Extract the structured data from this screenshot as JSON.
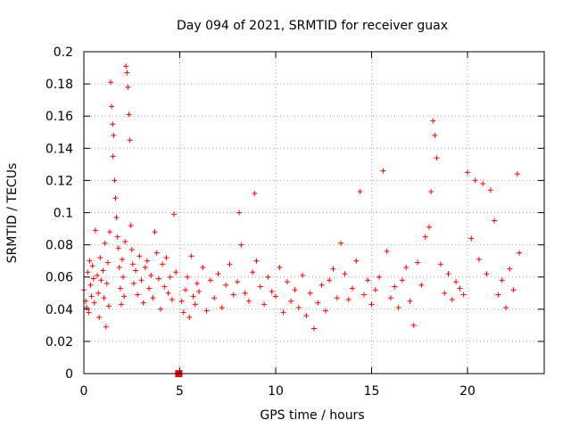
{
  "chart_data": {
    "type": "scatter",
    "title": "Day 094 of 2021, SRMTID for receiver guax",
    "xlabel": "GPS time / hours",
    "ylabel": "SRMTID / TECUs",
    "xlim": [
      0,
      24
    ],
    "ylim": [
      0,
      0.2
    ],
    "xticks": [
      0,
      5,
      10,
      15,
      20
    ],
    "xtick_labels": [
      "0",
      "5",
      "10",
      "15",
      "20"
    ],
    "yticks": [
      0,
      0.02,
      0.04,
      0.06,
      0.08,
      0.1,
      0.12,
      0.14,
      0.16,
      0.18,
      0.2
    ],
    "ytick_labels": [
      "0",
      "0.02",
      "0.04",
      "0.06",
      "0.08",
      "0.1",
      "0.12",
      "0.14",
      "0.16",
      "0.18",
      "0.2"
    ],
    "grid": true,
    "marker": "+",
    "color": "#ff0000",
    "series": [
      {
        "name": "SRMTID",
        "x": [
          0.0,
          0.1,
          0.15,
          0.2,
          0.25,
          0.3,
          0.35,
          0.4,
          0.45,
          0.5,
          0.55,
          0.6,
          0.7,
          0.75,
          0.8,
          0.85,
          0.9,
          1.0,
          1.05,
          1.1,
          1.15,
          1.2,
          1.25,
          1.3,
          1.35,
          1.4,
          1.45,
          1.5,
          1.52,
          1.55,
          1.6,
          1.65,
          1.7,
          1.75,
          1.8,
          1.85,
          1.9,
          1.95,
          2.0,
          2.05,
          2.1,
          2.15,
          2.2,
          2.25,
          2.3,
          2.35,
          2.4,
          2.45,
          2.5,
          2.55,
          2.6,
          2.7,
          2.8,
          2.9,
          3.0,
          3.1,
          3.2,
          3.3,
          3.4,
          3.5,
          3.6,
          3.7,
          3.8,
          3.9,
          4.0,
          4.1,
          4.2,
          4.3,
          4.4,
          4.5,
          4.6,
          4.7,
          4.8,
          5.0,
          5.1,
          5.2,
          5.3,
          5.4,
          5.5,
          5.6,
          5.7,
          5.8,
          5.9,
          6.0,
          6.2,
          6.4,
          6.6,
          6.8,
          7.0,
          7.2,
          7.4,
          7.6,
          7.8,
          8.0,
          8.1,
          8.2,
          8.4,
          8.6,
          8.8,
          8.9,
          9.0,
          9.2,
          9.4,
          9.6,
          9.8,
          10.0,
          10.2,
          10.4,
          10.6,
          10.8,
          11.0,
          11.2,
          11.4,
          11.6,
          11.8,
          12.0,
          12.2,
          12.4,
          12.6,
          12.8,
          13.0,
          13.2,
          13.4,
          13.6,
          13.8,
          14.0,
          14.2,
          14.4,
          14.6,
          14.8,
          15.0,
          15.2,
          15.4,
          15.6,
          15.8,
          16.0,
          16.2,
          16.4,
          16.6,
          16.8,
          17.0,
          17.2,
          17.4,
          17.6,
          17.8,
          18.0,
          18.1,
          18.2,
          18.3,
          18.4,
          18.6,
          18.8,
          19.0,
          19.2,
          19.4,
          19.6,
          19.8,
          20.0,
          20.2,
          20.4,
          20.6,
          20.8,
          21.0,
          21.2,
          21.4,
          21.6,
          21.8,
          22.0,
          22.2,
          22.4,
          22.6,
          22.7
        ],
        "y": [
          0.052,
          0.045,
          0.041,
          0.063,
          0.038,
          0.07,
          0.055,
          0.048,
          0.067,
          0.059,
          0.044,
          0.089,
          0.061,
          0.05,
          0.035,
          0.072,
          0.058,
          0.064,
          0.047,
          0.081,
          0.029,
          0.056,
          0.069,
          0.042,
          0.088,
          0.181,
          0.166,
          0.155,
          0.135,
          0.148,
          0.12,
          0.109,
          0.097,
          0.085,
          0.078,
          0.066,
          0.053,
          0.043,
          0.071,
          0.06,
          0.048,
          0.082,
          0.191,
          0.187,
          0.178,
          0.161,
          0.145,
          0.092,
          0.077,
          0.068,
          0.056,
          0.064,
          0.049,
          0.073,
          0.058,
          0.044,
          0.066,
          0.07,
          0.053,
          0.061,
          0.047,
          0.088,
          0.075,
          0.059,
          0.04,
          0.068,
          0.054,
          0.072,
          0.05,
          0.06,
          0.046,
          0.099,
          0.063,
          0.0,
          0.045,
          0.038,
          0.052,
          0.06,
          0.035,
          0.073,
          0.048,
          0.043,
          0.056,
          0.051,
          0.066,
          0.039,
          0.058,
          0.047,
          0.062,
          0.041,
          0.055,
          0.068,
          0.049,
          0.057,
          0.1,
          0.08,
          0.05,
          0.045,
          0.063,
          0.112,
          0.07,
          0.054,
          0.043,
          0.06,
          0.051,
          0.048,
          0.066,
          0.038,
          0.057,
          0.045,
          0.052,
          0.041,
          0.061,
          0.036,
          0.05,
          0.028,
          0.044,
          0.055,
          0.039,
          0.058,
          0.065,
          0.047,
          0.081,
          0.062,
          0.046,
          0.053,
          0.07,
          0.113,
          0.049,
          0.058,
          0.043,
          0.052,
          0.06,
          0.126,
          0.076,
          0.047,
          0.054,
          0.041,
          0.058,
          0.066,
          0.045,
          0.03,
          0.069,
          0.055,
          0.085,
          0.091,
          0.113,
          0.157,
          0.148,
          0.134,
          0.068,
          0.05,
          0.062,
          0.046,
          0.057,
          0.053,
          0.049,
          0.125,
          0.084,
          0.12,
          0.071,
          0.118,
          0.062,
          0.114,
          0.095,
          0.049,
          0.058,
          0.041,
          0.065,
          0.052,
          0.124,
          0.075
        ]
      }
    ],
    "highlight_point": {
      "x": 4.95,
      "y": 0.0
    }
  }
}
